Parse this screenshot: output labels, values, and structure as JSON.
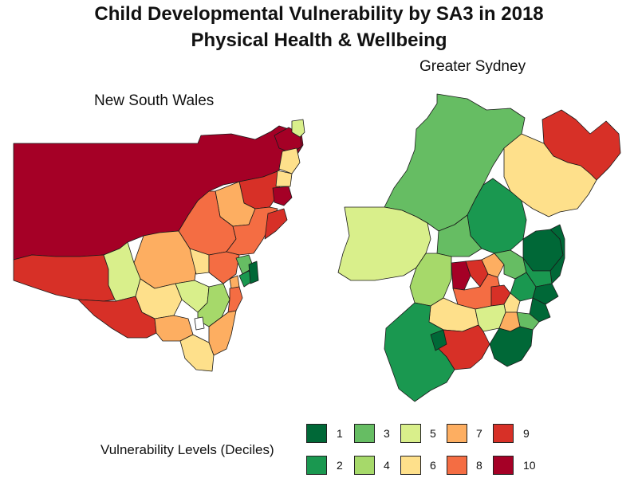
{
  "title": "Child Developmental Vulnerability by SA3 in 2018",
  "subtitle": "Physical Health & Wellbeing",
  "panels": {
    "nsw": "New South Wales",
    "sydney": "Greater Sydney"
  },
  "legend": {
    "title": "Vulnerability Levels (Deciles)",
    "items": [
      {
        "label": "1",
        "color": "#006837"
      },
      {
        "label": "2",
        "color": "#1a9850"
      },
      {
        "label": "3",
        "color": "#66bd63"
      },
      {
        "label": "4",
        "color": "#a6d96a"
      },
      {
        "label": "5",
        "color": "#d9ef8b"
      },
      {
        "label": "6",
        "color": "#fee08b"
      },
      {
        "label": "7",
        "color": "#fdae61"
      },
      {
        "label": "8",
        "color": "#f46d43"
      },
      {
        "label": "9",
        "color": "#d73027"
      },
      {
        "label": "10",
        "color": "#a50026"
      }
    ]
  }
}
